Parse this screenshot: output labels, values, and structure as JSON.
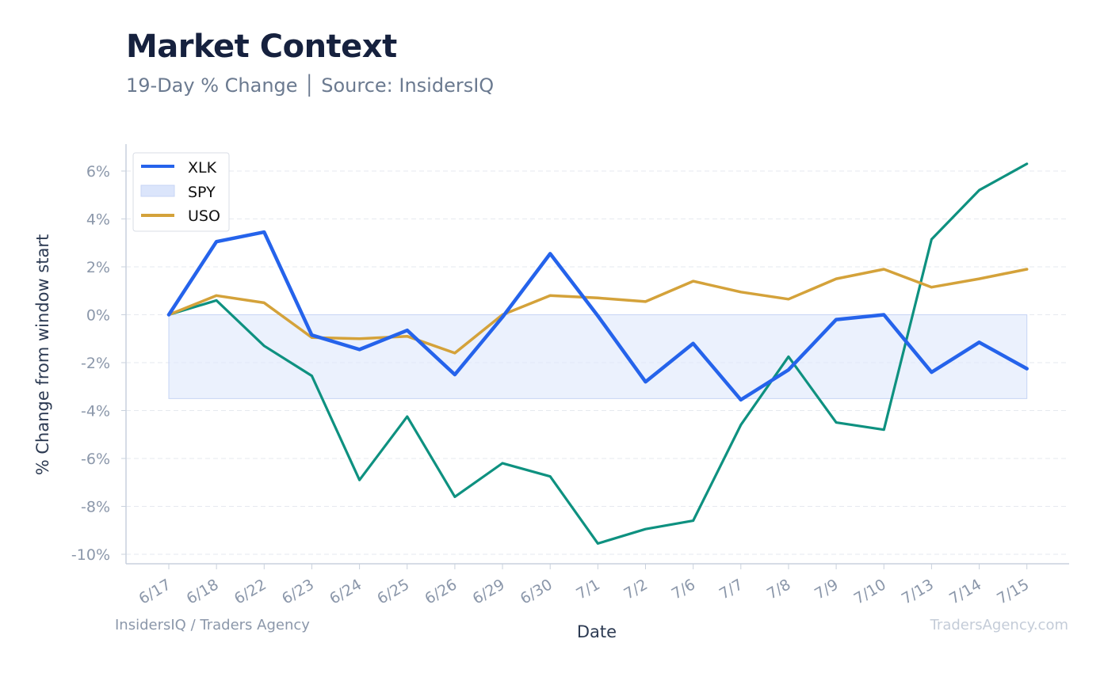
{
  "header": {
    "title": "Market Context",
    "subtitle": "19-Day % Change │ Source: InsidersIQ"
  },
  "footer": {
    "left": "InsidersIQ / Traders Agency",
    "right": "TradersAgency.com"
  },
  "colors": {
    "xlk": "#2563eb",
    "spy_line": "#0e9180",
    "spy_fill": "#dbe5fb",
    "uso": "#d4a23a",
    "grid": "#e6e9ef",
    "axis": "#c9d1dd"
  },
  "chart_data": {
    "type": "line",
    "title": "Market Context",
    "subtitle": "19-Day % Change │ Source: InsidersIQ",
    "xlabel": "Date",
    "ylabel": "% Change from window start",
    "categories": [
      "6/17",
      "6/18",
      "6/22",
      "6/23",
      "6/24",
      "6/25",
      "6/26",
      "6/29",
      "6/30",
      "7/1",
      "7/2",
      "7/6",
      "7/7",
      "7/8",
      "7/9",
      "7/10",
      "7/13",
      "7/14",
      "7/15"
    ],
    "yticks": [
      "6%",
      "4%",
      "2%",
      "0%",
      "-2%",
      "-4%",
      "-6%",
      "-8%",
      "-10%"
    ],
    "ylim": [
      -10.4,
      6.0
    ],
    "legend_position": "top-left",
    "grid": true,
    "series": [
      {
        "name": "XLK",
        "kind": "line",
        "values": [
          0.0,
          3.05,
          3.45,
          -0.85,
          -1.45,
          -0.65,
          -2.5,
          -0.1,
          2.55,
          -0.05,
          -2.8,
          -1.2,
          -3.55,
          -2.3,
          -0.2,
          0.0,
          -2.4,
          -1.15,
          -2.25
        ]
      },
      {
        "name": "SPY",
        "kind": "area",
        "values": [
          0.0,
          0.6,
          -1.3,
          -2.55,
          -6.9,
          -4.25,
          -7.6,
          -6.2,
          -6.75,
          -9.55,
          -8.95,
          -8.6,
          -4.6,
          -1.75,
          -4.5,
          -4.8,
          3.15,
          5.2,
          6.3
        ]
      },
      {
        "name": "USO",
        "kind": "line",
        "values": [
          0.0,
          0.8,
          0.5,
          -0.95,
          -1.0,
          -0.9,
          -1.6,
          0.0,
          0.8,
          0.7,
          0.55,
          1.4,
          0.95,
          0.65,
          1.5,
          1.9,
          1.15,
          1.5,
          1.9
        ]
      }
    ],
    "shaded_band": {
      "from": -3.5,
      "to": 0
    }
  }
}
